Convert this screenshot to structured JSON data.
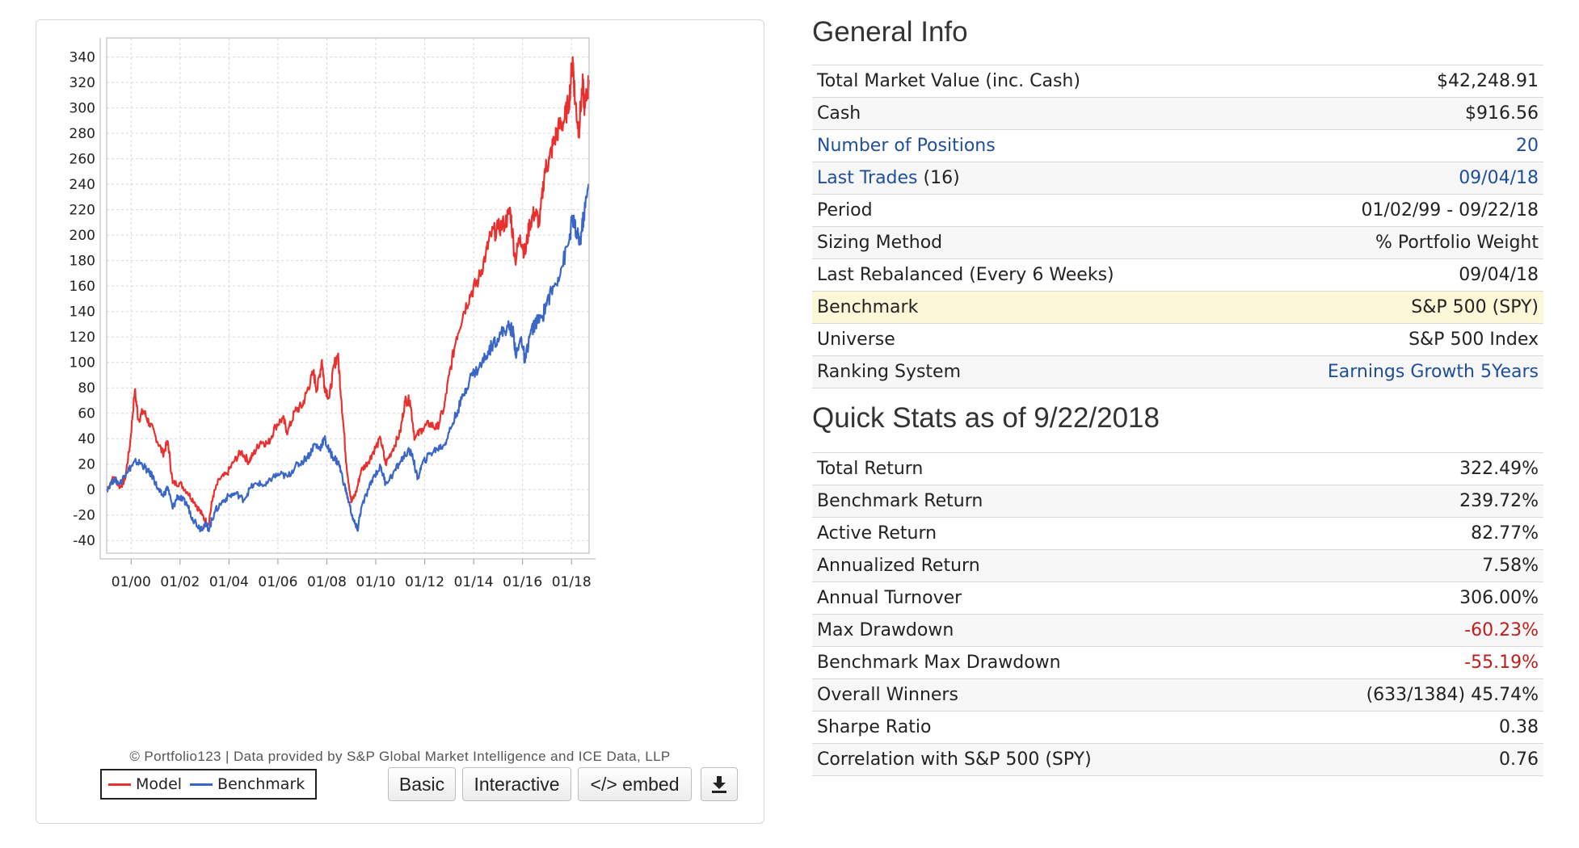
{
  "chart_data": {
    "type": "line",
    "ylim": [
      -50,
      355
    ],
    "yticks": [
      -40,
      -20,
      0,
      20,
      40,
      60,
      80,
      100,
      120,
      140,
      160,
      180,
      200,
      220,
      240,
      260,
      280,
      300,
      320,
      340
    ],
    "xlim": [
      1999.0,
      2018.72
    ],
    "xticks": [
      {
        "label": "01/00",
        "x": 2000.0
      },
      {
        "label": "01/02",
        "x": 2002.0
      },
      {
        "label": "01/04",
        "x": 2004.0
      },
      {
        "label": "01/06",
        "x": 2006.0
      },
      {
        "label": "01/08",
        "x": 2008.0
      },
      {
        "label": "01/10",
        "x": 2010.0
      },
      {
        "label": "01/12",
        "x": 2012.0
      },
      {
        "label": "01/14",
        "x": 2014.0
      },
      {
        "label": "01/16",
        "x": 2016.0
      },
      {
        "label": "01/18",
        "x": 2018.0
      }
    ],
    "grid": true,
    "legend_position": "bottom-left",
    "series": [
      {
        "name": "Model",
        "color": "#e8312f",
        "points": [
          [
            1999.0,
            0
          ],
          [
            1999.3,
            10
          ],
          [
            1999.55,
            2
          ],
          [
            1999.75,
            8
          ],
          [
            1999.95,
            35
          ],
          [
            2000.15,
            78
          ],
          [
            2000.3,
            55
          ],
          [
            2000.5,
            62
          ],
          [
            2000.75,
            52
          ],
          [
            2001.0,
            42
          ],
          [
            2001.3,
            28
          ],
          [
            2001.5,
            38
          ],
          [
            2001.7,
            5
          ],
          [
            2002.0,
            5
          ],
          [
            2002.3,
            -2
          ],
          [
            2002.6,
            -10
          ],
          [
            2002.9,
            -20
          ],
          [
            2003.15,
            -28
          ],
          [
            2003.35,
            -5
          ],
          [
            2003.6,
            8
          ],
          [
            2003.9,
            12
          ],
          [
            2004.2,
            22
          ],
          [
            2004.5,
            30
          ],
          [
            2004.8,
            22
          ],
          [
            2005.0,
            28
          ],
          [
            2005.3,
            38
          ],
          [
            2005.6,
            36
          ],
          [
            2005.9,
            50
          ],
          [
            2006.2,
            56
          ],
          [
            2006.4,
            45
          ],
          [
            2006.7,
            62
          ],
          [
            2007.0,
            66
          ],
          [
            2007.2,
            78
          ],
          [
            2007.45,
            92
          ],
          [
            2007.6,
            78
          ],
          [
            2007.8,
            102
          ],
          [
            2007.9,
            82
          ],
          [
            2008.1,
            72
          ],
          [
            2008.3,
            98
          ],
          [
            2008.45,
            106
          ],
          [
            2008.6,
            70
          ],
          [
            2008.8,
            20
          ],
          [
            2009.0,
            -10
          ],
          [
            2009.2,
            -2
          ],
          [
            2009.4,
            15
          ],
          [
            2009.7,
            22
          ],
          [
            2009.9,
            30
          ],
          [
            2010.2,
            40
          ],
          [
            2010.4,
            20
          ],
          [
            2010.7,
            32
          ],
          [
            2011.0,
            45
          ],
          [
            2011.2,
            70
          ],
          [
            2011.4,
            70
          ],
          [
            2011.6,
            40
          ],
          [
            2011.9,
            48
          ],
          [
            2012.2,
            52
          ],
          [
            2012.5,
            48
          ],
          [
            2012.8,
            65
          ],
          [
            2013.0,
            90
          ],
          [
            2013.3,
            120
          ],
          [
            2013.6,
            140
          ],
          [
            2013.9,
            155
          ],
          [
            2014.2,
            165
          ],
          [
            2014.5,
            185
          ],
          [
            2014.7,
            200
          ],
          [
            2015.0,
            205
          ],
          [
            2015.3,
            210
          ],
          [
            2015.5,
            220
          ],
          [
            2015.7,
            180
          ],
          [
            2015.9,
            200
          ],
          [
            2016.1,
            185
          ],
          [
            2016.3,
            210
          ],
          [
            2016.5,
            218
          ],
          [
            2016.7,
            210
          ],
          [
            2016.9,
            250
          ],
          [
            2017.1,
            260
          ],
          [
            2017.3,
            275
          ],
          [
            2017.5,
            285
          ],
          [
            2017.7,
            290
          ],
          [
            2017.9,
            305
          ],
          [
            2018.05,
            340
          ],
          [
            2018.15,
            305
          ],
          [
            2018.3,
            282
          ],
          [
            2018.45,
            318
          ],
          [
            2018.55,
            300
          ],
          [
            2018.72,
            322
          ]
        ]
      },
      {
        "name": "Benchmark",
        "color": "#3a66c7",
        "points": [
          [
            1999.0,
            0
          ],
          [
            1999.3,
            8
          ],
          [
            1999.55,
            5
          ],
          [
            1999.8,
            14
          ],
          [
            2000.0,
            18
          ],
          [
            2000.2,
            22
          ],
          [
            2000.45,
            20
          ],
          [
            2000.7,
            14
          ],
          [
            2000.9,
            10
          ],
          [
            2001.1,
            0
          ],
          [
            2001.3,
            -5
          ],
          [
            2001.5,
            2
          ],
          [
            2001.7,
            -15
          ],
          [
            2001.9,
            -5
          ],
          [
            2002.1,
            -8
          ],
          [
            2002.3,
            -12
          ],
          [
            2002.5,
            -22
          ],
          [
            2002.8,
            -30
          ],
          [
            2003.0,
            -28
          ],
          [
            2003.2,
            -30
          ],
          [
            2003.4,
            -18
          ],
          [
            2003.7,
            -10
          ],
          [
            2004.0,
            -5
          ],
          [
            2004.3,
            -3
          ],
          [
            2004.6,
            -8
          ],
          [
            2004.9,
            2
          ],
          [
            2005.2,
            5
          ],
          [
            2005.5,
            3
          ],
          [
            2005.8,
            10
          ],
          [
            2006.1,
            12
          ],
          [
            2006.4,
            10
          ],
          [
            2006.7,
            18
          ],
          [
            2007.0,
            22
          ],
          [
            2007.3,
            28
          ],
          [
            2007.5,
            36
          ],
          [
            2007.7,
            32
          ],
          [
            2007.9,
            40
          ],
          [
            2008.1,
            30
          ],
          [
            2008.3,
            25
          ],
          [
            2008.5,
            20
          ],
          [
            2008.7,
            5
          ],
          [
            2008.9,
            -10
          ],
          [
            2009.1,
            -25
          ],
          [
            2009.25,
            -32
          ],
          [
            2009.4,
            -15
          ],
          [
            2009.7,
            0
          ],
          [
            2009.9,
            10
          ],
          [
            2010.2,
            18
          ],
          [
            2010.4,
            5
          ],
          [
            2010.7,
            12
          ],
          [
            2011.0,
            22
          ],
          [
            2011.3,
            30
          ],
          [
            2011.5,
            28
          ],
          [
            2011.7,
            8
          ],
          [
            2011.9,
            20
          ],
          [
            2012.2,
            28
          ],
          [
            2012.5,
            32
          ],
          [
            2012.8,
            35
          ],
          [
            2013.0,
            45
          ],
          [
            2013.3,
            60
          ],
          [
            2013.6,
            75
          ],
          [
            2013.9,
            90
          ],
          [
            2014.2,
            95
          ],
          [
            2014.5,
            105
          ],
          [
            2014.8,
            115
          ],
          [
            2015.1,
            122
          ],
          [
            2015.4,
            128
          ],
          [
            2015.6,
            125
          ],
          [
            2015.75,
            105
          ],
          [
            2015.95,
            120
          ],
          [
            2016.1,
            100
          ],
          [
            2016.3,
            122
          ],
          [
            2016.5,
            130
          ],
          [
            2016.8,
            135
          ],
          [
            2017.0,
            148
          ],
          [
            2017.3,
            160
          ],
          [
            2017.6,
            175
          ],
          [
            2017.9,
            195
          ],
          [
            2018.05,
            215
          ],
          [
            2018.2,
            200
          ],
          [
            2018.35,
            195
          ],
          [
            2018.5,
            215
          ],
          [
            2018.72,
            240
          ]
        ]
      }
    ]
  },
  "chart": {
    "copyright": "© Portfolio123 | Data provided by S&P Global Market Intelligence and ICE Data, LLP",
    "legend": [
      {
        "label": "Model",
        "color": "#e8312f"
      },
      {
        "label": "Benchmark",
        "color": "#3a66c7"
      }
    ],
    "buttons": {
      "basic": "Basic",
      "interactive": "Interactive",
      "embed": "</> embed",
      "download_icon": "download-icon"
    }
  },
  "general_info": {
    "title": "General Info",
    "rows": [
      {
        "label": "Total Market Value (inc. Cash)",
        "value": "$42,248.91"
      },
      {
        "label": "Cash",
        "value": "$916.56"
      },
      {
        "label": "Number of Positions",
        "value": "20"
      },
      {
        "label": "Last Trades",
        "label_extra": " (16)",
        "value": "09/04/18"
      },
      {
        "label": "Period",
        "value": "01/02/99 - 09/22/18"
      },
      {
        "label": "Sizing Method",
        "value": "% Portfolio Weight"
      },
      {
        "label": "Last Rebalanced (Every 6 Weeks)",
        "value": "09/04/18"
      },
      {
        "label": "Benchmark",
        "value": "S&P 500 (SPY)"
      },
      {
        "label": "Universe",
        "value": "S&P 500 Index"
      },
      {
        "label": "Ranking System",
        "value": "Earnings Growth 5Years"
      }
    ],
    "highlight_color": "#fcf8d7",
    "link_color": "#1f4e9c"
  },
  "quick_stats": {
    "title": "Quick Stats as of 9/22/2018",
    "rows": [
      {
        "label": "Total Return",
        "value": "322.49%"
      },
      {
        "label": "Benchmark Return",
        "value": "239.72%"
      },
      {
        "label": "Active Return",
        "value": "82.77%"
      },
      {
        "label": "Annualized Return",
        "value": "7.58%"
      },
      {
        "label": "Annual Turnover",
        "value": "306.00%"
      },
      {
        "label": "Max Drawdown",
        "value": "-60.23%"
      },
      {
        "label": "Benchmark Max Drawdown",
        "value": "-55.19%"
      },
      {
        "label": "Overall Winners",
        "value": "(633/1384) 45.74%"
      },
      {
        "label": "Sharpe Ratio",
        "value": "0.38"
      },
      {
        "label": "Correlation with S&P 500 (SPY)",
        "value": "0.76"
      }
    ],
    "negative_color": "#c01d1d"
  }
}
